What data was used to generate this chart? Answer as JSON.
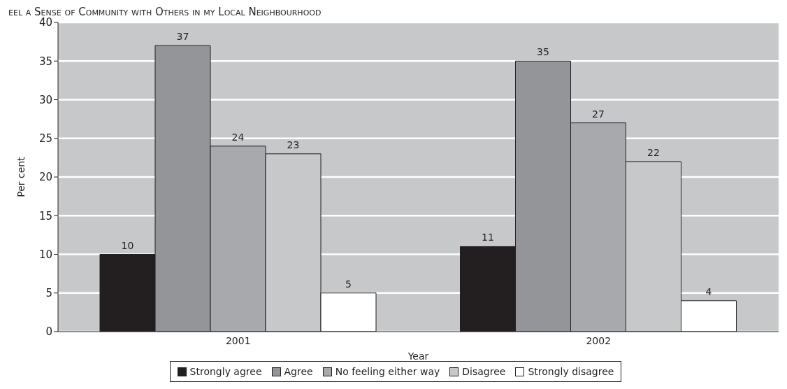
{
  "chart_data": {
    "type": "bar",
    "title": "eel a Sense of Community with Others in my Local Neighbourhood",
    "xlabel": "Year",
    "ylabel": "Per cent",
    "categories": [
      "2001",
      "2002"
    ],
    "series": [
      {
        "name": "Strongly agree",
        "color": "#231f20",
        "values": [
          10,
          11
        ]
      },
      {
        "name": "Agree",
        "color": "#939598",
        "values": [
          37,
          35
        ]
      },
      {
        "name": "No feeling either way",
        "color": "#a7a9ac",
        "values": [
          24,
          27
        ]
      },
      {
        "name": "Disagree",
        "color": "#c7c8ca",
        "values": [
          23,
          22
        ]
      },
      {
        "name": "Strongly disagree",
        "color": "#ffffff",
        "values": [
          5,
          4
        ]
      }
    ],
    "ylim": [
      0,
      40
    ],
    "yticks": [
      0,
      5,
      10,
      15,
      20,
      25,
      30,
      35,
      40
    ],
    "grid": "y",
    "data_labels": true,
    "legend": "bottom"
  }
}
